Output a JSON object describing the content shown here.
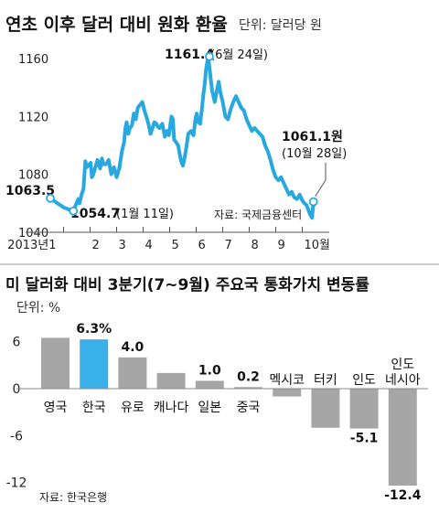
{
  "chart_data": [
    {
      "type": "line",
      "title": "연초 이후 달러 대비 원화 환율",
      "unit_note": "단위: 달러당 원",
      "source": "자료: 국제금융센터",
      "ylim": [
        1040,
        1160
      ],
      "yticks": [
        1160,
        1120,
        1080,
        1040
      ],
      "ytick_labels": [
        "1160",
        "1120",
        "1080",
        "1040"
      ],
      "xtick_labels": [
        "2013년1",
        "2",
        "3",
        "4",
        "5",
        "6",
        "7",
        "8",
        "9",
        "10월"
      ],
      "x": [
        0,
        0.27,
        0.52,
        0.75,
        0.87,
        1.05,
        1.1,
        1.18,
        1.25,
        1.32,
        1.38,
        1.47,
        1.52,
        1.57,
        1.62,
        1.7,
        1.78,
        1.88,
        1.95,
        2.0,
        2.1,
        2.2,
        2.3,
        2.4,
        2.5,
        2.6,
        2.7,
        2.78,
        2.83,
        2.88,
        2.94,
        3.0,
        3.08,
        3.15,
        3.22,
        3.3,
        3.38,
        3.47,
        3.55,
        3.62,
        3.7,
        3.78,
        3.85,
        3.92,
        4.0,
        4.05,
        4.12,
        4.22,
        4.32,
        4.4,
        4.47,
        4.57,
        4.62,
        4.67,
        4.75,
        4.82,
        4.9,
        4.95,
        5.0,
        5.07,
        5.14,
        5.2,
        5.3,
        5.4,
        5.47,
        5.52,
        5.58,
        5.65,
        5.72,
        5.77,
        5.82,
        5.87,
        5.95,
        6.0,
        6.05,
        6.1,
        6.2,
        6.28,
        6.35,
        6.42,
        6.5,
        6.6,
        6.7,
        6.8,
        6.9,
        7.0,
        7.1,
        7.2,
        7.3,
        7.4,
        7.5,
        7.6,
        7.7,
        7.8,
        7.9,
        8.0,
        8.1,
        8.2,
        8.3,
        8.4,
        8.5,
        8.6,
        8.7,
        8.8,
        8.9,
        9.0,
        9.1,
        9.2,
        9.3,
        9.4,
        9.5,
        9.58,
        9.65,
        9.72,
        9.8,
        9.87,
        9.92
      ],
      "values": [
        1063.5,
        1060,
        1057,
        1055.5,
        1054.7,
        1063,
        1060,
        1066,
        1070,
        1089,
        1085,
        1087,
        1088,
        1078,
        1080,
        1085,
        1090,
        1084,
        1091,
        1087,
        1087,
        1090,
        1080,
        1085,
        1078,
        1084,
        1096,
        1102,
        1112,
        1116,
        1108,
        1112,
        1114,
        1122,
        1118,
        1126,
        1128,
        1130,
        1124,
        1120,
        1115,
        1108,
        1112,
        1116,
        1115,
        1113,
        1112,
        1115,
        1106,
        1110,
        1107,
        1120,
        1118,
        1104,
        1102,
        1100,
        1092,
        1088,
        1086,
        1092,
        1100,
        1108,
        1110,
        1107,
        1118,
        1122,
        1116,
        1115,
        1126,
        1135,
        1142,
        1152,
        1161.4,
        1154,
        1146,
        1138,
        1130,
        1138,
        1144,
        1136,
        1130,
        1120,
        1118,
        1125,
        1130,
        1134,
        1130,
        1126,
        1124,
        1118,
        1114,
        1110,
        1112,
        1110,
        1108,
        1106,
        1100,
        1096,
        1090,
        1083,
        1078,
        1076,
        1078,
        1074,
        1070,
        1066,
        1068,
        1064,
        1063,
        1066,
        1062,
        1060,
        1059,
        1056,
        1052,
        1050,
        1061.1
      ],
      "annotations": [
        {
          "label": "1063.5",
          "x": 0,
          "value": 1063.5
        },
        {
          "label": "1054.7",
          "sublabel": "(1월 11일)",
          "x": 0.87,
          "value": 1054.7
        },
        {
          "label": "1161.4",
          "sublabel": "(6월 24일)",
          "x": 6.0,
          "value": 1161.4
        },
        {
          "label": "1061.1원",
          "sublabel": "(10월 28일)",
          "x": 9.92,
          "value": 1061.1
        }
      ],
      "line_color": "#29a8e0",
      "grid": false
    },
    {
      "type": "bar",
      "title": "미 달러화 대비 3분기(7~9월) 주요국 통화가치 변동률",
      "unit_note": "단위: %",
      "source": "자료: 한국은행",
      "categories": [
        "영국",
        "한국",
        "유로",
        "캐나다",
        "일본",
        "중국",
        "멕시코",
        "터키",
        "인도",
        "인도네시아"
      ],
      "category_labels": [
        "영국",
        "한국",
        "유로",
        "캐나다",
        "일본",
        "중국",
        "멕시코",
        "터키",
        "인도",
        "인도\n네시아"
      ],
      "values": [
        6.5,
        6.3,
        4.0,
        2.0,
        1.0,
        0.2,
        -1.0,
        -5.0,
        -5.1,
        -12.4
      ],
      "value_labels": [
        "",
        "6.3%",
        "4.0",
        "",
        "1.0",
        "0.2",
        "",
        "",
        "-5.1",
        "-12.4"
      ],
      "ylim": [
        -12.4,
        7
      ],
      "yticks": [
        6,
        0,
        -6,
        -12
      ],
      "ytick_labels": [
        "6",
        "0",
        "-6",
        "-12"
      ],
      "bar_color": "#a6a6a6",
      "highlight_color": "#3ab0ea",
      "highlight_index": 1
    }
  ]
}
